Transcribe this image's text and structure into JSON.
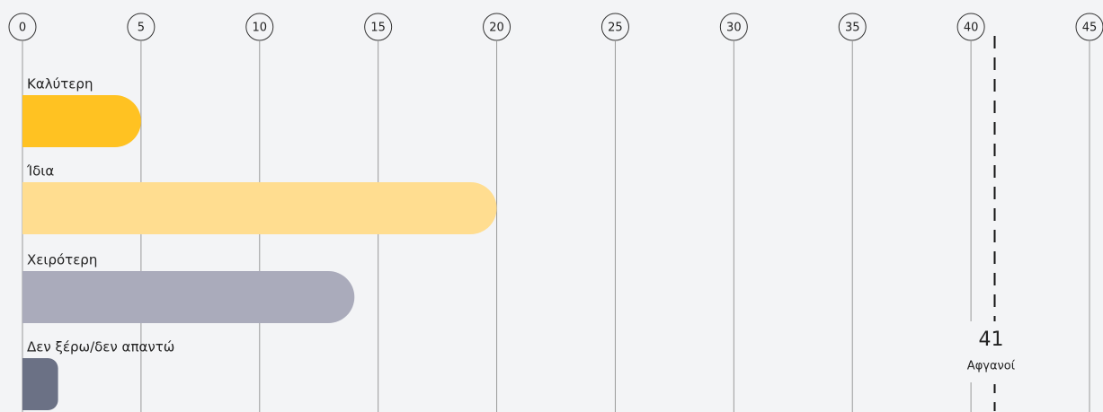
{
  "chart_data": {
    "type": "bar",
    "orientation": "horizontal",
    "categories": [
      "Καλύτερη",
      "Ίδια",
      "Χειρότερη",
      "Δεν ξέρω/δεν απαντώ"
    ],
    "values": [
      5,
      20,
      14,
      1.5
    ],
    "colors": [
      "#ffc222",
      "#ffdd90",
      "#aaabbb",
      "#6b7185"
    ],
    "xlim": [
      0,
      45
    ],
    "xticks": [
      0,
      5,
      10,
      15,
      20,
      25,
      30,
      35,
      40,
      45
    ],
    "grid": true,
    "reference_line": {
      "value": 41,
      "label": "Αφγανοί"
    }
  }
}
